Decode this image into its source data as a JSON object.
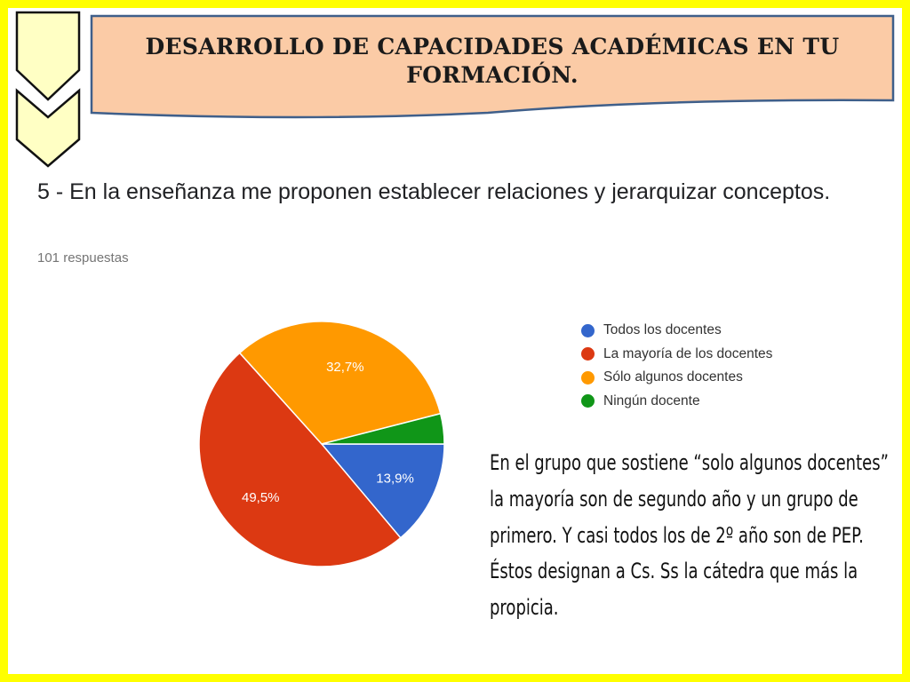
{
  "header": {
    "title": "DESARROLLO DE CAPACIDADES ACADÉMICAS EN TU FORMACIÓN."
  },
  "question": {
    "text": "5 - En la enseñanza me proponen establecer relaciones y jerarquizar conceptos.",
    "responses": "101 respuestas"
  },
  "chart_data": {
    "type": "pie",
    "title": "",
    "categories": [
      "Todos los docentes",
      "La mayoría de los docentes",
      "Sólo algunos docentes",
      "Ningún docente"
    ],
    "values": [
      13.9,
      49.5,
      32.7,
      4.0
    ],
    "labels": [
      "13,9%",
      "49,5%",
      "32,7%",
      ""
    ],
    "colors": [
      "#3366cc",
      "#dc3912",
      "#ff9900",
      "#109618"
    ],
    "legend_position": "right"
  },
  "note": {
    "text": "En el grupo que sostiene “solo algunos docentes” la mayoría son de segundo año y un grupo de primero. Y casi todos los de 2º año son de PEP. Éstos designan a Cs. Ss  la cátedra que más la propicia."
  },
  "colors": {
    "frame": "#ffff00",
    "banner_fill": "#fbcba6",
    "banner_border": "#3f5f8a",
    "chevron_fill": "#ffffc4"
  }
}
